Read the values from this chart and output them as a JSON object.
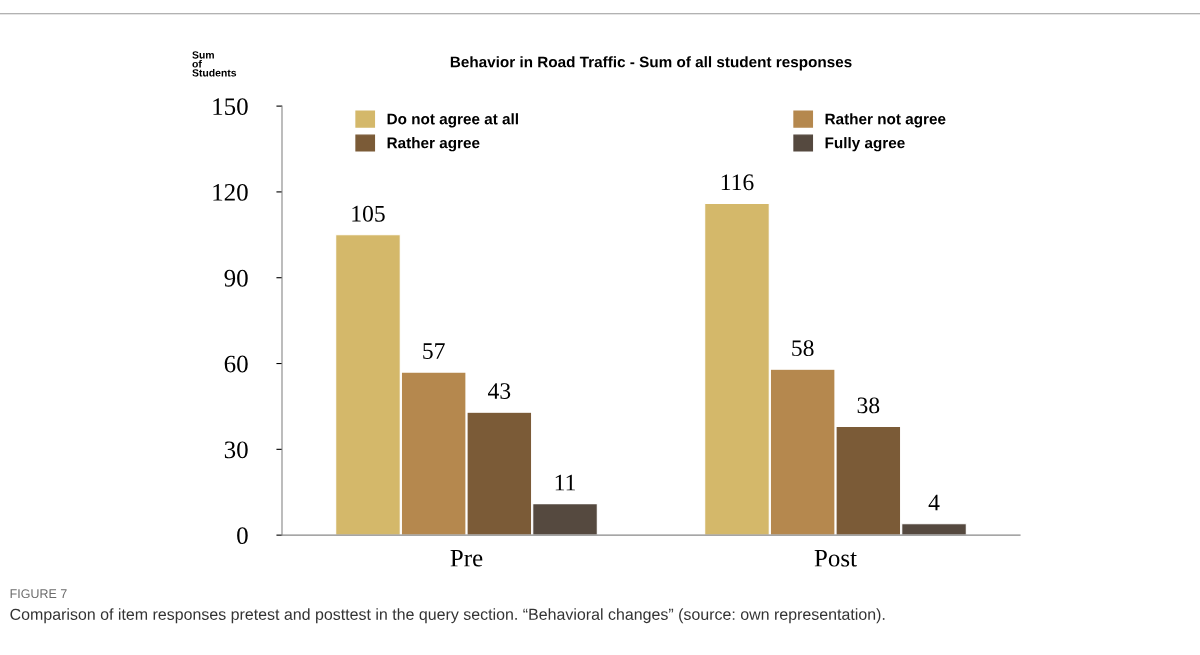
{
  "chart_data": {
    "type": "bar",
    "title": "Behavior in Road Traffic - Sum of all student responses",
    "ylabel": "Sum\nof\nStudents",
    "categories": [
      "Pre",
      "Post"
    ],
    "series": [
      {
        "name": "Do not agree at all",
        "color": "#d4b86a",
        "values": [
          105,
          116
        ]
      },
      {
        "name": "Rather not agree",
        "color": "#b5884e",
        "values": [
          57,
          58
        ]
      },
      {
        "name": "Rather agree",
        "color": "#7b5b37",
        "values": [
          43,
          38
        ]
      },
      {
        "name": "Fully agree",
        "color": "#55493f",
        "values": [
          11,
          4
        ]
      }
    ],
    "ylim": [
      0,
      150
    ],
    "yticks": [
      0,
      30,
      60,
      90,
      120,
      150
    ],
    "grid": false,
    "legend": "top",
    "data_labels": true,
    "annotations": [
      "FIGURE 7",
      "Comparison of item responses pretest and posttest in the query section. “Behavioral changes” (source: own representation)."
    ]
  }
}
